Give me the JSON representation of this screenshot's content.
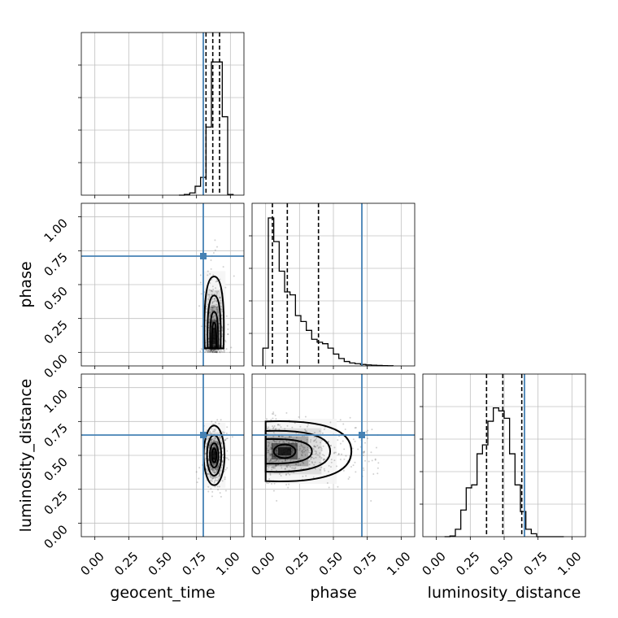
{
  "figure": {
    "variables": [
      "geocent_time",
      "phase",
      "luminosity_distance"
    ],
    "tick_labels": [
      "0.00",
      "0.25",
      "0.50",
      "0.75",
      "1.00"
    ],
    "colors": {
      "truth": "#4682b4",
      "line": "#000000",
      "grid": "#c0c0c0",
      "point": "#000000"
    }
  },
  "chart_data": {
    "type": "corner",
    "variables": [
      "geocent_time",
      "phase",
      "luminosity_distance"
    ],
    "axis_range": [
      -0.1,
      1.1
    ],
    "ticks": [
      0.0,
      0.25,
      0.5,
      0.75,
      1.0
    ],
    "grid": true,
    "truth_values": {
      "geocent_time": 0.8,
      "phase": 0.71,
      "luminosity_distance": 0.65
    },
    "quantiles": {
      "geocent_time": [
        0.82,
        0.87,
        0.92
      ],
      "phase": [
        0.05,
        0.16,
        0.39
      ],
      "luminosity_distance": [
        0.37,
        0.49,
        0.63
      ]
    },
    "histograms": {
      "geocent_time": {
        "edges": [
          0.62,
          0.66,
          0.7,
          0.74,
          0.78,
          0.82,
          0.86,
          0.9,
          0.94,
          0.98,
          1.02
        ],
        "counts": [
          0.0,
          0.005,
          0.015,
          0.06,
          0.12,
          0.46,
          0.9,
          0.9,
          0.53,
          0.005
        ]
      },
      "phase": {
        "edges": [
          -0.02,
          0.02,
          0.06,
          0.1,
          0.14,
          0.18,
          0.22,
          0.26,
          0.3,
          0.34,
          0.38,
          0.42,
          0.46,
          0.5,
          0.54,
          0.58,
          0.62,
          0.66,
          0.7,
          0.74,
          0.78,
          0.82,
          0.86,
          0.9,
          0.94
        ],
        "counts": [
          0.12,
          1.0,
          0.84,
          0.64,
          0.5,
          0.48,
          0.34,
          0.3,
          0.24,
          0.18,
          0.16,
          0.15,
          0.12,
          0.08,
          0.05,
          0.03,
          0.02,
          0.015,
          0.01,
          0.007,
          0.005,
          0.003,
          0.002,
          0.001
        ]
      },
      "luminosity_distance": {
        "edges": [
          0.06,
          0.1,
          0.14,
          0.18,
          0.22,
          0.26,
          0.3,
          0.34,
          0.38,
          0.42,
          0.46,
          0.5,
          0.54,
          0.58,
          0.62,
          0.66,
          0.7,
          0.74,
          0.78,
          0.82,
          0.86,
          0.9,
          0.94
        ],
        "counts": [
          0.0,
          0.005,
          0.05,
          0.18,
          0.33,
          0.35,
          0.56,
          0.62,
          0.78,
          0.87,
          0.85,
          0.8,
          0.56,
          0.35,
          0.17,
          0.05,
          0.02,
          0.0,
          0.0,
          0.0,
          0.0,
          0.0
        ]
      }
    },
    "joint": {
      "phase_vs_geocent_time": {
        "x_center": 0.88,
        "x_sd": 0.035,
        "y_center": 0.12,
        "y_sd": 0.2
      },
      "luminosity_distance_vs_geocent_time": {
        "x_center": 0.88,
        "x_sd": 0.035,
        "y_center": 0.5,
        "y_sd": 0.1
      },
      "luminosity_distance_vs_phase": {
        "x_center": 0.14,
        "x_sd": 0.16,
        "y_center": 0.53,
        "y_sd": 0.1
      }
    }
  }
}
